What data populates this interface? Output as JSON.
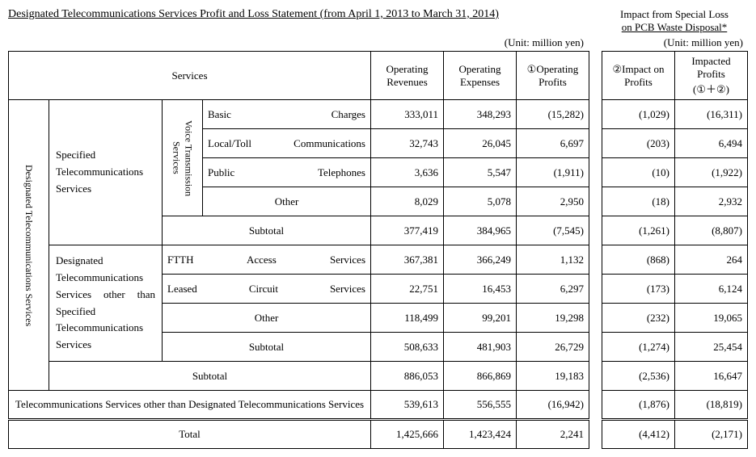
{
  "title": "Designated Telecommunications Services Profit and Loss Statement (from April 1, 2013 to March 31, 2014)",
  "special_header_l1": "Impact from Special Loss",
  "special_header_l2": "on PCB Waste Disposal*",
  "unit_left": "(Unit: million yen)",
  "unit_right": "(Unit: million yen)",
  "headers": {
    "services": "Services",
    "rev": "Operating Revenues",
    "exp": "Operating Expenses",
    "prof": "①Operating Profits",
    "impact": "②Impact on Profits",
    "impacted_l1": "Impacted Profits",
    "impacted_l2": "(①＋②)"
  },
  "vlabels": {
    "designated": "Designated Telecommunications Services",
    "voice": "Voice Transmission Services"
  },
  "groups": {
    "specified": "Specified Telecommunications Services",
    "other_desig": "Designated Telecommunications Services other than Specified Telecommunications Services"
  },
  "rows": {
    "basic": {
      "label": "Basic Charges",
      "rev": "333,011",
      "exp": "348,293",
      "prof": "(15,282)",
      "impact": "(1,029)",
      "impacted": "(16,311)"
    },
    "local": {
      "label": "Local/Toll Communications",
      "rev": "32,743",
      "exp": "26,045",
      "prof": "6,697",
      "impact": "(203)",
      "impacted": "6,494"
    },
    "public": {
      "label": "Public Telephones",
      "rev": "3,636",
      "exp": "5,547",
      "prof": "(1,911)",
      "impact": "(10)",
      "impacted": "(1,922)"
    },
    "other1": {
      "label": "Other",
      "rev": "8,029",
      "exp": "5,078",
      "prof": "2,950",
      "impact": "(18)",
      "impacted": "2,932"
    },
    "sub1": {
      "label": "Subtotal",
      "rev": "377,419",
      "exp": "384,965",
      "prof": "(7,545)",
      "impact": "(1,261)",
      "impacted": "(8,807)"
    },
    "ftth": {
      "label": "FTTH Access Services",
      "rev": "367,381",
      "exp": "366,249",
      "prof": "1,132",
      "impact": "(868)",
      "impacted": "264"
    },
    "leased": {
      "label": "Leased Circuit Services",
      "rev": "22,751",
      "exp": "16,453",
      "prof": "6,297",
      "impact": "(173)",
      "impacted": "6,124"
    },
    "other2": {
      "label": "Other",
      "rev": "118,499",
      "exp": "99,201",
      "prof": "19,298",
      "impact": "(232)",
      "impacted": "19,065"
    },
    "sub2": {
      "label": "Subtotal",
      "rev": "508,633",
      "exp": "481,903",
      "prof": "26,729",
      "impact": "(1,274)",
      "impacted": "25,454"
    },
    "sub3": {
      "label": "Subtotal",
      "rev": "886,053",
      "exp": "866,869",
      "prof": "19,183",
      "impact": "(2,536)",
      "impacted": "16,647"
    },
    "nondesig": {
      "label": "Telecommunications Services other than Designated Telecommunications Services",
      "rev": "539,613",
      "exp": "556,555",
      "prof": "(16,942)",
      "impact": "(1,876)",
      "impacted": "(18,819)"
    },
    "total": {
      "label": "Total",
      "rev": "1,425,666",
      "exp": "1,423,424",
      "prof": "2,241",
      "impact": "(4,412)",
      "impacted": "(2,171)"
    }
  },
  "row_label_width": 180
}
